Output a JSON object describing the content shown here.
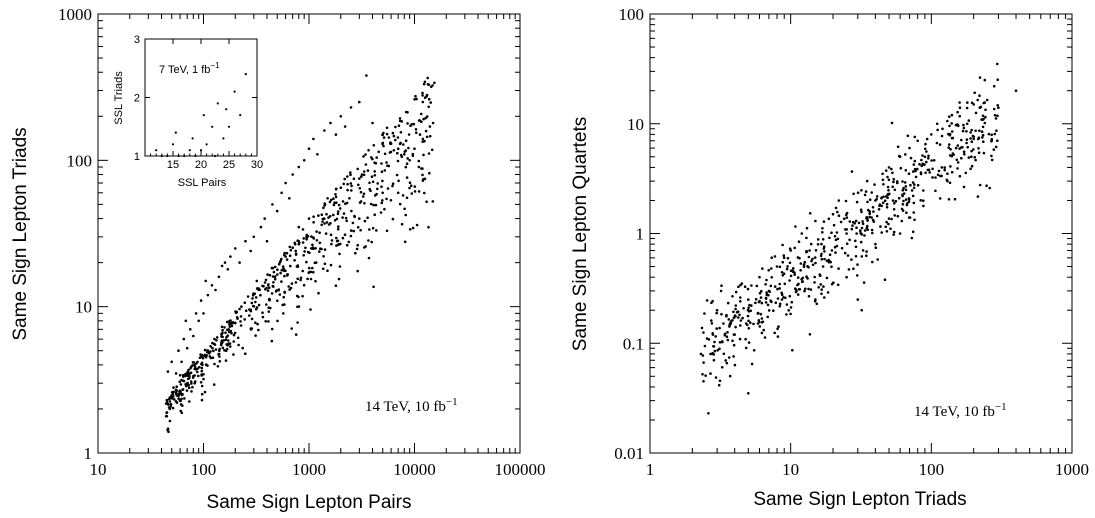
{
  "chart_data": [
    {
      "type": "scatter",
      "xlabel": "Same Sign Lepton Pairs",
      "ylabel": "Same Sign Lepton Triads",
      "xscale": "log",
      "yscale": "log",
      "xlim": [
        10,
        100000
      ],
      "ylim": [
        1,
        1000
      ],
      "xticks": [
        "10",
        "100",
        "1000",
        "10000",
        "100000"
      ],
      "yticks": [
        "1",
        "10",
        "100",
        "1000"
      ],
      "annotation": {
        "main": "14 TeV, 10 fb",
        "sup": "−1"
      },
      "point_count_approx": 700,
      "points": [
        [
          45,
          2.3
        ],
        [
          48,
          2.4
        ],
        [
          46,
          3.6
        ],
        [
          52,
          2.8
        ],
        [
          50,
          4.2
        ],
        [
          55,
          3.5
        ],
        [
          58,
          5
        ],
        [
          62,
          4.2
        ],
        [
          60,
          3.4
        ],
        [
          65,
          6
        ],
        [
          70,
          5.2
        ],
        [
          75,
          7
        ],
        [
          68,
          8
        ],
        [
          80,
          6.3
        ],
        [
          85,
          9
        ],
        [
          90,
          8
        ],
        [
          95,
          11
        ],
        [
          100,
          9
        ],
        [
          110,
          12
        ],
        [
          120,
          14
        ],
        [
          105,
          15
        ],
        [
          130,
          13
        ],
        [
          140,
          16
        ],
        [
          150,
          19
        ],
        [
          160,
          20
        ],
        [
          170,
          18
        ],
        [
          180,
          22
        ],
        [
          200,
          25
        ],
        [
          220,
          20
        ],
        [
          250,
          28
        ],
        [
          280,
          24
        ],
        [
          300,
          30
        ],
        [
          320,
          15
        ],
        [
          350,
          35
        ],
        [
          380,
          40
        ],
        [
          400,
          28
        ],
        [
          450,
          50
        ],
        [
          500,
          45
        ],
        [
          550,
          60
        ],
        [
          600,
          70
        ],
        [
          650,
          55
        ],
        [
          700,
          80
        ],
        [
          800,
          90
        ],
        [
          900,
          100
        ],
        [
          1000,
          120
        ],
        [
          1100,
          140
        ],
        [
          1200,
          110
        ],
        [
          1400,
          160
        ],
        [
          1600,
          180
        ],
        [
          1800,
          150
        ],
        [
          2000,
          200
        ],
        [
          2200,
          170
        ],
        [
          2500,
          230
        ],
        [
          3000,
          250
        ],
        [
          3500,
          380
        ],
        [
          4000,
          180
        ],
        [
          5000,
          150
        ],
        [
          6000,
          130
        ],
        [
          7000,
          120
        ],
        [
          8000,
          110
        ],
        [
          9000,
          100
        ],
        [
          10000,
          120
        ],
        [
          12000,
          140
        ],
        [
          14000,
          170
        ],
        [
          15000,
          180
        ],
        [
          600,
          22
        ],
        [
          800,
          35
        ],
        [
          1000,
          40
        ],
        [
          1500,
          55
        ],
        [
          2000,
          65
        ],
        [
          3000,
          75
        ],
        [
          5000,
          60
        ],
        [
          7000,
          60
        ],
        [
          3000,
          40
        ],
        [
          11000,
          90
        ]
      ],
      "inset": {
        "type": "scatter",
        "xlabel": "SSL Pairs",
        "ylabel": "SSL Triads",
        "xlim": [
          10,
          30
        ],
        "ylim": [
          1,
          3
        ],
        "xticks": [
          "15",
          "20",
          "25",
          "30"
        ],
        "yticks": [
          "1",
          "2",
          "3"
        ],
        "title": {
          "main": "7 TeV,  1 fb",
          "sup": "−1"
        },
        "points": [
          [
            12,
            1.1
          ],
          [
            13,
            1.0
          ],
          [
            14,
            1.0
          ],
          [
            15,
            1.2
          ],
          [
            15.5,
            1.4
          ],
          [
            16,
            1.0
          ],
          [
            17,
            1.0
          ],
          [
            18,
            1.1
          ],
          [
            18.5,
            1.3
          ],
          [
            19,
            1.0
          ],
          [
            20,
            1.1
          ],
          [
            20.5,
            1.7
          ],
          [
            21,
            1.2
          ],
          [
            22,
            1.5
          ],
          [
            22.5,
            1.0
          ],
          [
            23,
            1.9
          ],
          [
            24,
            1.3
          ],
          [
            24.5,
            1.8
          ],
          [
            25,
            1.5
          ],
          [
            26,
            2.1
          ],
          [
            27,
            1.7
          ],
          [
            28,
            2.4
          ]
        ]
      }
    },
    {
      "type": "scatter",
      "xlabel": "Same Sign Lepton Triads",
      "ylabel": "Same Sign Lepton Quartets",
      "xscale": "log",
      "yscale": "log",
      "xlim": [
        1,
        1000
      ],
      "ylim": [
        0.01,
        100
      ],
      "xticks": [
        "1",
        "10",
        "100",
        "1000"
      ],
      "yticks": [
        "0.01",
        "0.1",
        "1",
        "10",
        "100"
      ],
      "annotation": {
        "main": "14 TeV, 10 fb",
        "sup": "−1"
      },
      "point_count_approx": 650,
      "points": [
        [
          2.3,
          0.08
        ],
        [
          2.4,
          0.045
        ],
        [
          2.6,
          0.023
        ],
        [
          2.8,
          0.12
        ],
        [
          3,
          0.2
        ],
        [
          3.2,
          0.3
        ],
        [
          3.5,
          0.18
        ],
        [
          4,
          0.12
        ],
        [
          4.5,
          0.35
        ],
        [
          5,
          0.035
        ],
        [
          5,
          0.25
        ],
        [
          6,
          0.4
        ],
        [
          7,
          0.3
        ],
        [
          8,
          0.5
        ],
        [
          9,
          0.6
        ],
        [
          10,
          0.7
        ],
        [
          11,
          0.3
        ],
        [
          12,
          1
        ],
        [
          14,
          0.8
        ],
        [
          15,
          1.3
        ],
        [
          17,
          0.5
        ],
        [
          20,
          1.5
        ],
        [
          22,
          2
        ],
        [
          25,
          1
        ],
        [
          28,
          2.3
        ],
        [
          30,
          0.25
        ],
        [
          32,
          0.2
        ],
        [
          35,
          3
        ],
        [
          40,
          2
        ],
        [
          45,
          3.5
        ],
        [
          50,
          4
        ],
        [
          55,
          2.5
        ],
        [
          60,
          5
        ],
        [
          70,
          6
        ],
        [
          80,
          7
        ],
        [
          90,
          5
        ],
        [
          100,
          8
        ],
        [
          110,
          10
        ],
        [
          120,
          9
        ],
        [
          140,
          12
        ],
        [
          160,
          14
        ],
        [
          180,
          10
        ],
        [
          200,
          15
        ],
        [
          220,
          18
        ],
        [
          240,
          25
        ],
        [
          260,
          2.6
        ],
        [
          280,
          22
        ],
        [
          300,
          14
        ],
        [
          400,
          20
        ],
        [
          150,
          6
        ],
        [
          130,
          3
        ],
        [
          60,
          1
        ],
        [
          40,
          0.8
        ],
        [
          25,
          0.4
        ],
        [
          15,
          0.25
        ]
      ]
    }
  ]
}
